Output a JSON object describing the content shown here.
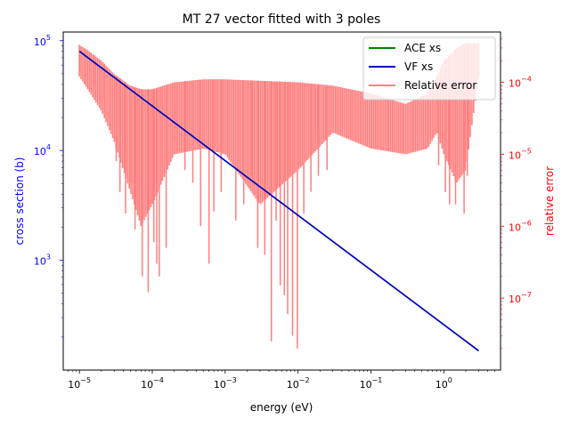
{
  "chart_data": {
    "type": "line",
    "title": "MT 27 vector fitted with 3 poles",
    "xlabel": "energy (eV)",
    "ylabel": "cross section (b)",
    "ylabel2": "relative error",
    "xscale": "log",
    "yscale": "log",
    "y2scale": "log",
    "xlim": [
      6e-06,
      6
    ],
    "ylim": [
      100,
      120000
    ],
    "y2lim": [
      1e-08,
      0.0005
    ],
    "x_ticks": [
      {
        "base": "10",
        "exp": "−5",
        "value": 1e-05
      },
      {
        "base": "10",
        "exp": "−4",
        "value": 0.0001
      },
      {
        "base": "10",
        "exp": "−3",
        "value": 0.001
      },
      {
        "base": "10",
        "exp": "−2",
        "value": 0.01
      },
      {
        "base": "10",
        "exp": "−1",
        "value": 0.1
      },
      {
        "base": "10",
        "exp": "0",
        "value": 1
      }
    ],
    "y_ticks": [
      {
        "base": "10",
        "exp": "3",
        "value": 1000
      },
      {
        "base": "10",
        "exp": "4",
        "value": 10000
      },
      {
        "base": "10",
        "exp": "5",
        "value": 100000
      }
    ],
    "y2_ticks": [
      {
        "base": "10",
        "exp": "−7",
        "value": 1e-07
      },
      {
        "base": "10",
        "exp": "−6",
        "value": 1e-06
      },
      {
        "base": "10",
        "exp": "−5",
        "value": 1e-05
      },
      {
        "base": "10",
        "exp": "−4",
        "value": 0.0001
      }
    ],
    "legend_position": "top-right",
    "series": [
      {
        "name": "ACE xs",
        "color": "#008000",
        "axis": "left",
        "x": [
          1e-05,
          3
        ],
        "y": [
          80000,
          150
        ]
      },
      {
        "name": "VF xs",
        "color": "#0000cc",
        "axis": "left",
        "x": [
          1e-05,
          3
        ],
        "y": [
          80000,
          150
        ]
      },
      {
        "name": "Relative error",
        "color": "#ff7f7f",
        "axis": "right",
        "envelope_x": [
          1e-05,
          1.3e-05,
          2e-05,
          3e-05,
          5e-05,
          7e-05,
          0.0001,
          0.0002,
          0.0005,
          0.001,
          0.003,
          0.01,
          0.03,
          0.1,
          0.3,
          0.6,
          0.8,
          1.0,
          1.5,
          2.0,
          3.0
        ],
        "envelope_upper": [
          0.00033,
          0.00028,
          0.0002,
          0.00013,
          9e-05,
          8e-05,
          8e-05,
          0.0001,
          0.00011,
          0.00011,
          0.000105,
          0.0001,
          9e-05,
          7e-05,
          5e-05,
          7e-05,
          0.00012,
          0.0002,
          0.0003,
          0.00035,
          0.00035
        ],
        "envelope_lower": [
          0.00012,
          8e-05,
          4e-05,
          1.5e-05,
          3e-06,
          1e-06,
          2e-06,
          1e-05,
          1.2e-05,
          1e-05,
          2e-06,
          6e-06,
          2e-05,
          1.2e-05,
          1e-05,
          1.2e-05,
          2e-05,
          1e-05,
          4e-06,
          6e-06,
          0.00012
        ],
        "dips_x": [
          1e-05,
          1.6e-05,
          2.1e-05,
          3.2e-05,
          3.6e-05,
          4.3e-05,
          5.1e-05,
          5.8e-05,
          6.6e-05,
          7.3e-05,
          8.8e-05,
          0.000105,
          0.000115,
          0.000125,
          0.000155,
          0.0002,
          0.00028,
          0.00036,
          0.00046,
          0.0006,
          0.0007,
          0.00088,
          0.0014,
          0.0018,
          0.0023,
          0.0028,
          0.0035,
          0.0043,
          0.005,
          0.0057,
          0.0065,
          0.0072,
          0.0084,
          0.0098,
          0.012,
          0.015,
          0.019,
          0.025,
          0.85,
          1.05,
          1.2,
          1.45,
          1.9,
          2.1
        ],
        "dips_y": [
          0.00012,
          9e-05,
          6e-05,
          8e-06,
          3e-06,
          1.5e-06,
          4e-06,
          9e-07,
          1.5e-06,
          2e-07,
          1.2e-07,
          6e-07,
          3e-07,
          2e-07,
          5e-07,
          1.5e-05,
          6e-06,
          4e-06,
          1e-06,
          3e-07,
          1.6e-06,
          3e-06,
          1.2e-06,
          2e-06,
          5e-06,
          5e-07,
          4e-07,
          2.5e-08,
          1.2e-06,
          1.5e-07,
          1.1e-07,
          6e-08,
          3e-08,
          2e-08,
          1.5e-06,
          3e-06,
          5e-06,
          6e-06,
          7e-06,
          3e-06,
          2e-06,
          2e-06,
          1.5e-06,
          5e-06
        ]
      }
    ]
  }
}
